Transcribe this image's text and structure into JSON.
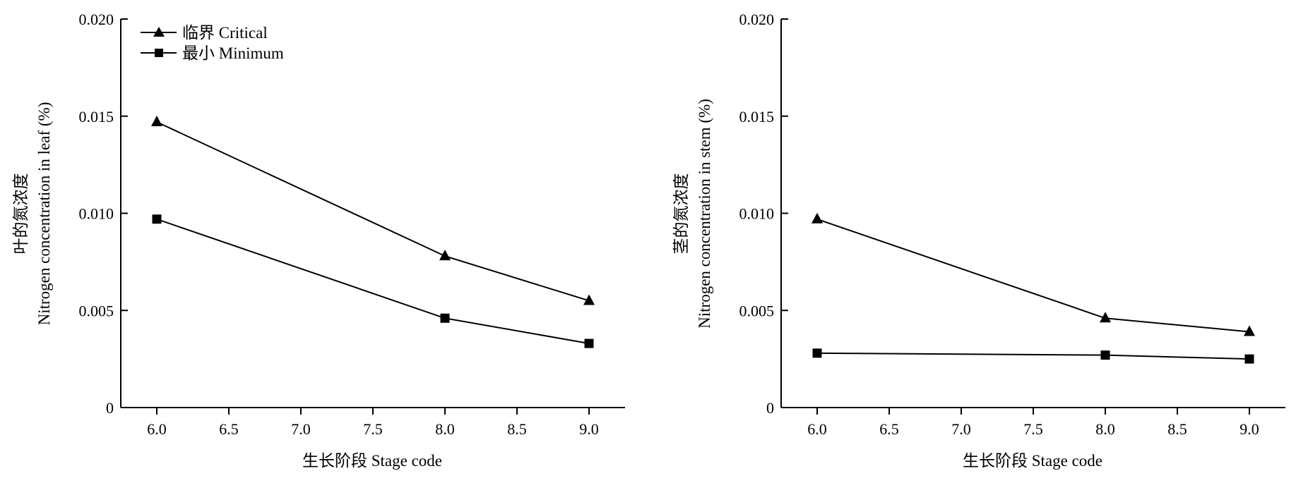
{
  "chart_data": [
    {
      "type": "line",
      "title": "",
      "xlabel": "生长阶段 Stage code",
      "ylabel_cn": "叶的氮浓度",
      "ylabel_en": "Nitrogen concentration in leaf (%)",
      "xlim": [
        5.75,
        9.25
      ],
      "ylim": [
        0,
        0.02
      ],
      "xticks": [
        6.0,
        6.5,
        7.0,
        7.5,
        8.0,
        8.5,
        9.0
      ],
      "xtick_labels": [
        "6.0",
        "6.5",
        "7.0",
        "7.5",
        "8.0",
        "8.5",
        "9.0"
      ],
      "yticks": [
        0,
        0.005,
        0.01,
        0.015,
        0.02
      ],
      "ytick_labels": [
        "0",
        "0.005",
        "0.010",
        "0.015",
        "0.020"
      ],
      "grid": false,
      "legend_position": "top-left",
      "series": [
        {
          "name": "临界 Critical",
          "marker": "triangle",
          "x": [
            6.0,
            8.0,
            9.0
          ],
          "y": [
            0.0147,
            0.0078,
            0.0055
          ]
        },
        {
          "name": "最小 Minimum",
          "marker": "square",
          "x": [
            6.0,
            8.0,
            9.0
          ],
          "y": [
            0.0097,
            0.0046,
            0.0033
          ]
        }
      ]
    },
    {
      "type": "line",
      "title": "",
      "xlabel": "生长阶段 Stage code",
      "ylabel_cn": "茎的氮浓度",
      "ylabel_en": "Nitrogen concentration in stem (%)",
      "xlim": [
        5.75,
        9.25
      ],
      "ylim": [
        0,
        0.02
      ],
      "xticks": [
        6.0,
        6.5,
        7.0,
        7.5,
        8.0,
        8.5,
        9.0
      ],
      "xtick_labels": [
        "6.0",
        "6.5",
        "7.0",
        "7.5",
        "8.0",
        "8.5",
        "9.0"
      ],
      "yticks": [
        0,
        0.005,
        0.01,
        0.015,
        0.02
      ],
      "ytick_labels": [
        "0",
        "0.005",
        "0.010",
        "0.015",
        "0.020"
      ],
      "grid": false,
      "series": [
        {
          "marker": "triangle",
          "x": [
            6.0,
            8.0,
            9.0
          ],
          "y": [
            0.0097,
            0.0046,
            0.0039
          ]
        },
        {
          "marker": "square",
          "x": [
            6.0,
            8.0,
            9.0
          ],
          "y": [
            0.0028,
            0.0027,
            0.0025
          ]
        }
      ]
    }
  ]
}
